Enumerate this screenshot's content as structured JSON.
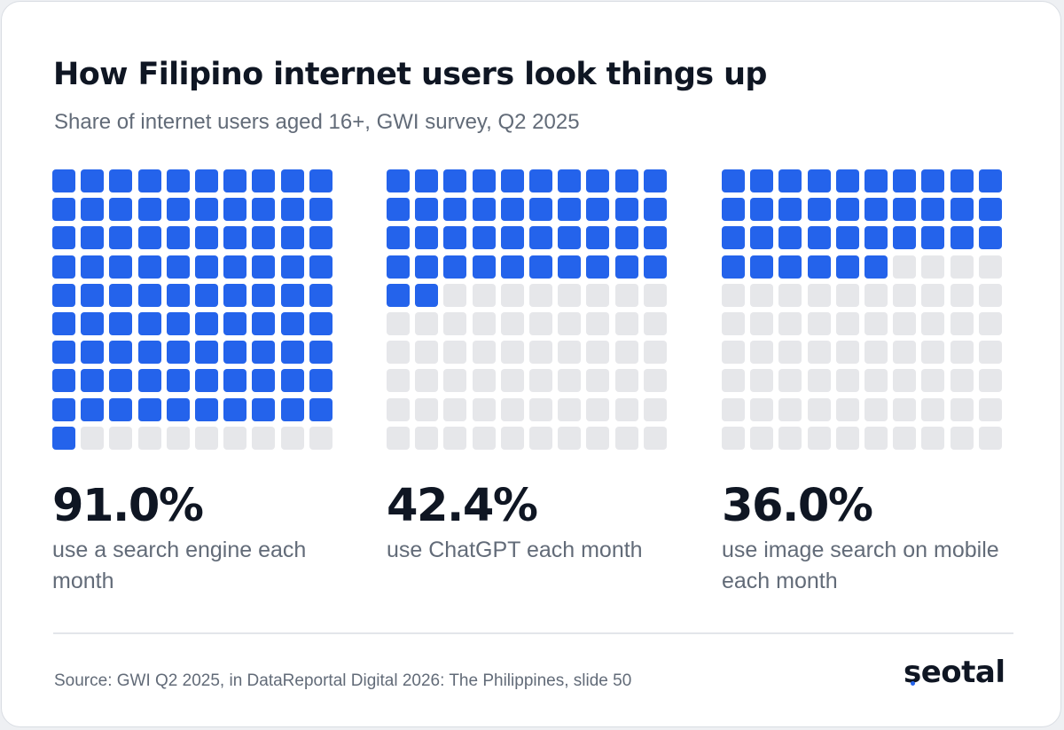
{
  "title": "How Filipino internet users look things up",
  "subtitle": "Share of internet users aged 16+, GWI survey, Q2 2025",
  "source": "Source: GWI Q2 2025, in DataReportal Digital 2026: The Philippines, slide 50",
  "brand": {
    "name": "seotal",
    "accent_color": "#2463eb"
  },
  "colors": {
    "filled": "#2463eb",
    "empty": "#e6e7ea"
  },
  "chart_data": {
    "type": "waffle",
    "grid": {
      "rows": 10,
      "cols": 10,
      "total": 100
    },
    "items": [
      {
        "value": 91.0,
        "value_label": "91.0%",
        "label": "use a search engine each month"
      },
      {
        "value": 42.4,
        "value_label": "42.4%",
        "label": "use ChatGPT each month"
      },
      {
        "value": 36.0,
        "value_label": "36.0%",
        "label": "use image search on mobile each month"
      }
    ]
  }
}
